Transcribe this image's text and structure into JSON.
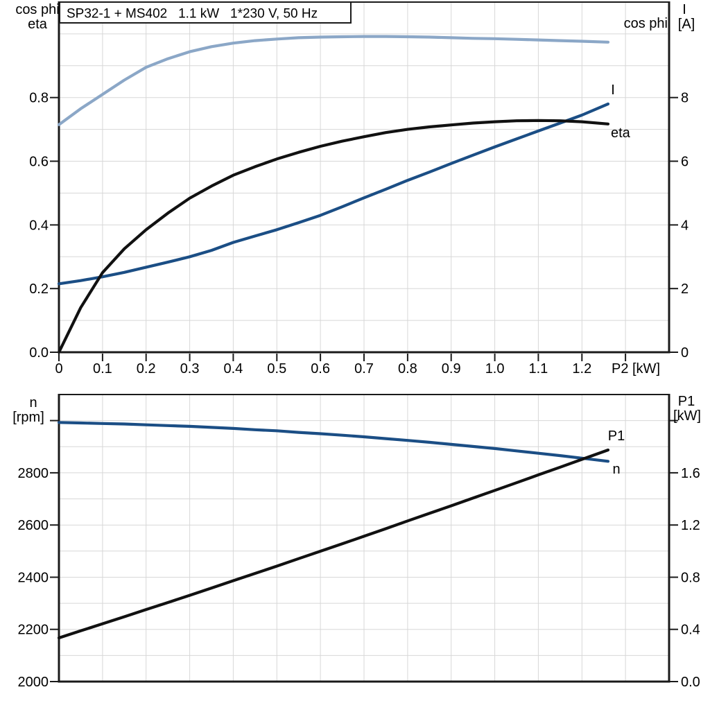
{
  "title": "SP32-1 + MS402   1.1 kW   1*230 V, 50 Hz",
  "colors": {
    "cos_phi": "#8ba7c7",
    "current": "#1b4e85",
    "eta": "#111111",
    "speed": "#1b4e85",
    "power": "#111111",
    "grid": "#d7d7d7",
    "frame": "#1a1a1a",
    "text": "#000000",
    "background": "#ffffff"
  },
  "chart_data": [
    {
      "type": "line",
      "title": "SP32-1 + MS402   1.1 kW   1*230 V, 50 Hz",
      "xlabel": "P2 [kW]",
      "x_axis": {
        "lim": [
          0,
          1.4
        ],
        "grid_step": 0.1,
        "tick_values": [
          0,
          0.1,
          0.2,
          0.3,
          0.4,
          0.5,
          0.6,
          0.7,
          0.8,
          0.9,
          1.0,
          1.1,
          1.2
        ],
        "tick_labels": [
          "0",
          "0.1",
          "0.2",
          "0.3",
          "0.4",
          "0.5",
          "0.6",
          "0.7",
          "0.8",
          "0.9",
          "1.0",
          "1.1",
          "1.2"
        ]
      },
      "left_axis": {
        "header": [
          "cos phi",
          "eta"
        ],
        "lim": [
          0,
          1.1
        ],
        "grid_step": 0.1,
        "tick_values": [
          0,
          0.2,
          0.4,
          0.6,
          0.8
        ],
        "tick_labels": [
          "0.0",
          "0.2",
          "0.4",
          "0.6",
          "0.8"
        ],
        "extra_tick_values": []
      },
      "right_axis": {
        "header": [
          "I",
          "[A]"
        ],
        "lim": [
          0,
          11
        ],
        "tick_values": [
          0,
          2,
          4,
          6,
          8
        ],
        "tick_labels": [
          "0",
          "2",
          "4",
          "6",
          "8"
        ],
        "extra_tick_values": []
      },
      "x": [
        0,
        0.05,
        0.1,
        0.15,
        0.2,
        0.25,
        0.3,
        0.35,
        0.4,
        0.45,
        0.5,
        0.55,
        0.6,
        0.65,
        0.7,
        0.75,
        0.8,
        0.85,
        0.9,
        0.95,
        1.0,
        1.05,
        1.1,
        1.15,
        1.2,
        1.26
      ],
      "series": [
        {
          "name": "cos phi",
          "axis": "left",
          "color_key": "cos_phi",
          "values": [
            0.715,
            0.765,
            0.81,
            0.855,
            0.895,
            0.922,
            0.944,
            0.96,
            0.971,
            0.979,
            0.984,
            0.988,
            0.99,
            0.991,
            0.992,
            0.992,
            0.991,
            0.99,
            0.988,
            0.986,
            0.985,
            0.983,
            0.981,
            0.979,
            0.977,
            0.974
          ]
        },
        {
          "name": "I",
          "axis": "right",
          "color_key": "current",
          "values": [
            2.15,
            2.25,
            2.37,
            2.51,
            2.67,
            2.83,
            3.0,
            3.2,
            3.45,
            3.65,
            3.85,
            4.07,
            4.3,
            4.57,
            4.85,
            5.12,
            5.4,
            5.66,
            5.93,
            6.19,
            6.45,
            6.7,
            6.95,
            7.2,
            7.45,
            7.8
          ]
        },
        {
          "name": "eta",
          "axis": "left",
          "color_key": "eta",
          "values": [
            0,
            0.14,
            0.25,
            0.325,
            0.385,
            0.437,
            0.484,
            0.522,
            0.556,
            0.583,
            0.607,
            0.628,
            0.647,
            0.663,
            0.677,
            0.69,
            0.7,
            0.708,
            0.714,
            0.72,
            0.724,
            0.727,
            0.728,
            0.727,
            0.724,
            0.717
          ]
        }
      ]
    },
    {
      "type": "line",
      "title": "",
      "xlabel": "",
      "x_axis": {
        "lim": [
          0,
          1.4
        ],
        "grid_step": 0.1,
        "tick_values": [],
        "tick_labels": []
      },
      "left_axis": {
        "header": [
          "n",
          "[rpm]"
        ],
        "lim": [
          2000,
          3100
        ],
        "grid_step": 100,
        "tick_values": [
          2000,
          2200,
          2400,
          2600,
          2800
        ],
        "tick_labels": [
          "2000",
          "2200",
          "2400",
          "2600",
          "2800"
        ],
        "extra_tick_values": [
          3000
        ]
      },
      "right_axis": {
        "header": [
          "P1",
          "[kW]"
        ],
        "lim": [
          0,
          2.2
        ],
        "tick_values": [
          0,
          0.4,
          0.8,
          1.2,
          1.6
        ],
        "tick_labels": [
          "0.0",
          "0.4",
          "0.8",
          "1.2",
          "1.6"
        ],
        "extra_tick_values": [
          2.0
        ]
      },
      "x": [
        0,
        0.05,
        0.1,
        0.15,
        0.2,
        0.25,
        0.3,
        0.35,
        0.4,
        0.45,
        0.5,
        0.55,
        0.6,
        0.65,
        0.7,
        0.75,
        0.8,
        0.85,
        0.9,
        0.95,
        1.0,
        1.05,
        1.1,
        1.15,
        1.2,
        1.26
      ],
      "series": [
        {
          "name": "n",
          "axis": "left",
          "color_key": "speed",
          "values": [
            2993,
            2991,
            2989,
            2987,
            2984,
            2981,
            2978,
            2974,
            2970,
            2965,
            2961,
            2955,
            2950,
            2944,
            2938,
            2931,
            2924,
            2917,
            2909,
            2901,
            2893,
            2884,
            2875,
            2866,
            2856,
            2844
          ]
        },
        {
          "name": "P1",
          "axis": "right",
          "color_key": "power",
          "values": [
            0.335,
            0.389,
            0.443,
            0.497,
            0.552,
            0.606,
            0.661,
            0.717,
            0.773,
            0.829,
            0.885,
            0.942,
            0.999,
            1.056,
            1.114,
            1.172,
            1.231,
            1.289,
            1.347,
            1.406,
            1.465,
            1.524,
            1.584,
            1.643,
            1.703,
            1.775
          ]
        }
      ]
    }
  ]
}
